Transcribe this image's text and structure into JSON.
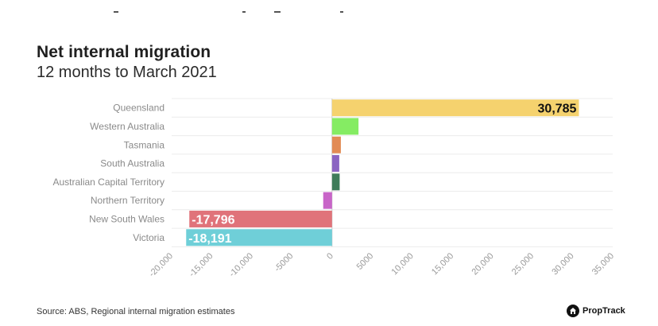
{
  "header": {
    "title": "Net internal migration",
    "subtitle": "12 months to March 2021"
  },
  "footer": {
    "source": "Source: ABS, Regional internal migration estimates",
    "brand": "PropTrack"
  },
  "colors": {
    "gridline": "#ececec",
    "zero_line": "#cccccc",
    "label_dark": "#111111",
    "label_light": "#ffffff"
  },
  "chart_data": {
    "type": "bar",
    "orientation": "horizontal",
    "title": "Net internal migration",
    "subtitle": "12 months to March 2021",
    "xlabel": "",
    "ylabel": "",
    "xlim": [
      -20000,
      35000
    ],
    "x_ticks": [
      -20000,
      -15000,
      -10000,
      -5000,
      0,
      5000,
      10000,
      15000,
      20000,
      25000,
      30000,
      35000
    ],
    "x_tick_labels": [
      "-20,000",
      "-15,000",
      "-10,000",
      "-5000",
      "0",
      "5000",
      "10,000",
      "15,000",
      "20,000",
      "25,000",
      "30,000",
      "35,000"
    ],
    "grid": true,
    "categories": [
      "Queensland",
      "Western Australia",
      "Tasmania",
      "South Australia",
      "Australian Capital Territory",
      "Northern Territory",
      "New South Wales",
      "Victoria"
    ],
    "values": [
      30785,
      3300,
      1100,
      900,
      950,
      -1100,
      -17796,
      -18191
    ],
    "bar_colors": [
      "#f5d26e",
      "#85ec63",
      "#e28b55",
      "#8b64c2",
      "#3f7c5a",
      "#c865c8",
      "#e0737a",
      "#6fcfd8"
    ],
    "data_labels": [
      "30,785",
      "",
      "",
      "",
      "",
      "",
      "-17,796",
      "-18,191"
    ]
  }
}
